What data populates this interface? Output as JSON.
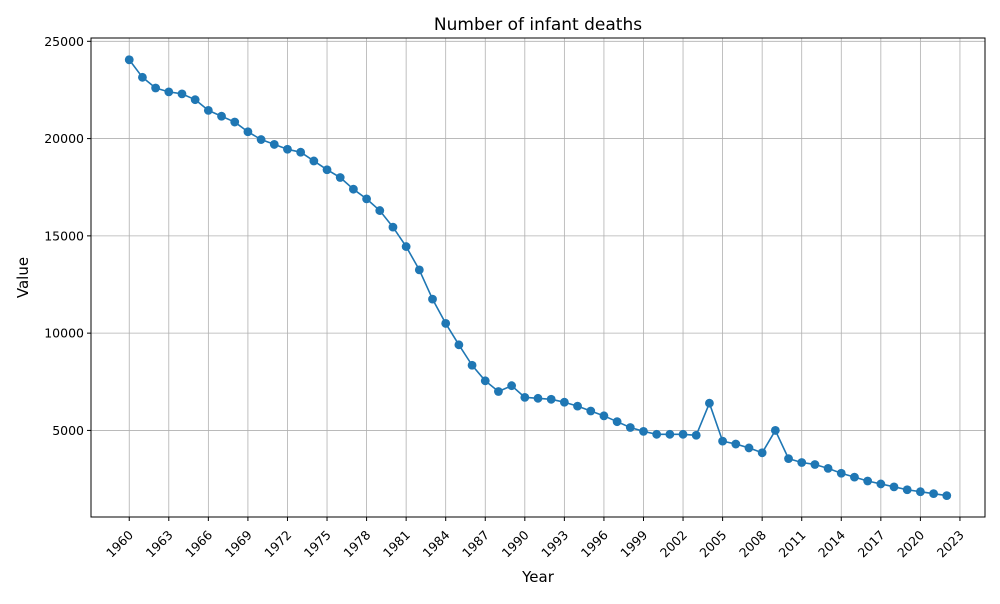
{
  "chart_data": {
    "type": "line",
    "title": "Number of infant deaths",
    "xlabel": "Year",
    "ylabel": "Value",
    "x": [
      1960,
      1961,
      1962,
      1963,
      1964,
      1965,
      1966,
      1967,
      1968,
      1969,
      1970,
      1971,
      1972,
      1973,
      1974,
      1975,
      1976,
      1977,
      1978,
      1979,
      1980,
      1981,
      1982,
      1983,
      1984,
      1985,
      1986,
      1987,
      1988,
      1989,
      1990,
      1991,
      1992,
      1993,
      1994,
      1995,
      1996,
      1997,
      1998,
      1999,
      2000,
      2001,
      2002,
      2003,
      2004,
      2005,
      2006,
      2007,
      2008,
      2009,
      2010,
      2011,
      2012,
      2013,
      2014,
      2015,
      2016,
      2017,
      2018,
      2019,
      2020,
      2021,
      2022
    ],
    "series": [
      {
        "name": "",
        "color": "#1f77b4",
        "marker": "circle",
        "values": [
          24050,
          23150,
          22600,
          22400,
          22300,
          22000,
          21450,
          21150,
          20850,
          20350,
          19950,
          19700,
          19450,
          19300,
          18850,
          18400,
          18000,
          17400,
          16900,
          16300,
          15450,
          14450,
          13250,
          11750,
          10500,
          9400,
          8350,
          7550,
          7000,
          7300,
          6700,
          6650,
          6600,
          6450,
          6250,
          6000,
          5750,
          5450,
          5150,
          4950,
          4800,
          4800,
          4800,
          4750,
          6400,
          4450,
          4300,
          4100,
          3850,
          5000,
          3550,
          3350,
          3250,
          3050,
          2800,
          2600,
          2400,
          2250,
          2100,
          1950,
          1850,
          1750,
          1650
        ]
      }
    ],
    "xticks": [
      1960,
      1963,
      1966,
      1969,
      1972,
      1975,
      1978,
      1981,
      1984,
      1987,
      1990,
      1993,
      1996,
      1999,
      2002,
      2005,
      2008,
      2011,
      2014,
      2017,
      2020,
      2023
    ],
    "yticks": [
      5000,
      10000,
      15000,
      20000,
      25000
    ],
    "xlim": [
      1957.1,
      2024.9
    ],
    "ylim": [
      550,
      25170
    ],
    "grid": true,
    "legend": "none"
  }
}
